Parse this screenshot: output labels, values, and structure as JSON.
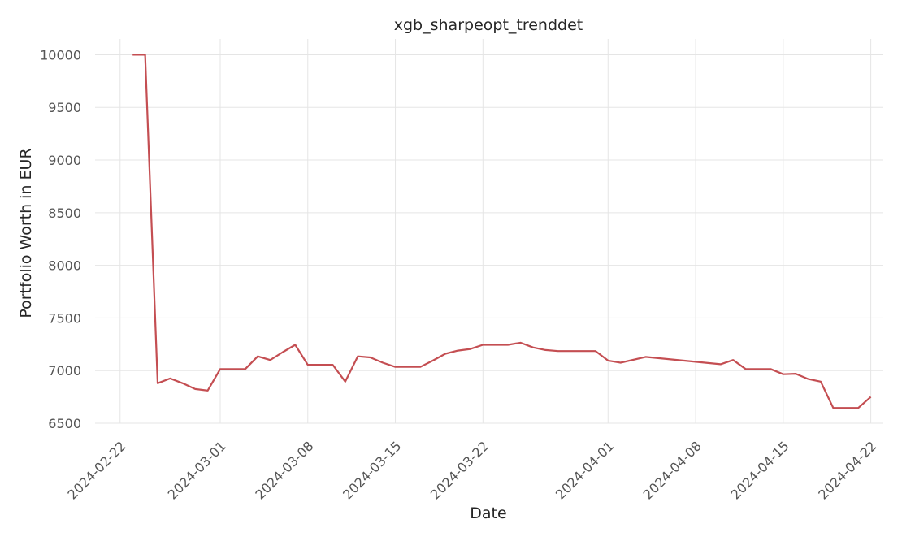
{
  "chart_data": {
    "type": "line",
    "title": "xgb_sharpeopt_trenddet",
    "xlabel": "Date",
    "ylabel": "Portfolio Worth in EUR",
    "ylim": [
      6500,
      10150
    ],
    "xlim": [
      "2024-02-20",
      "2024-04-23"
    ],
    "yticks": [
      6500,
      7000,
      7500,
      8000,
      8500,
      9000,
      9500,
      10000
    ],
    "xticks": [
      "2024-02-22",
      "2024-03-01",
      "2024-03-08",
      "2024-03-15",
      "2024-03-22",
      "2024-04-01",
      "2024-04-08",
      "2024-04-15",
      "2024-04-22"
    ],
    "grid": true,
    "line_color": "#c44e52",
    "series": [
      {
        "x": [
          "2024-02-23",
          "2024-02-24",
          "2024-02-25",
          "2024-02-26",
          "2024-02-27",
          "2024-02-28",
          "2024-02-29",
          "2024-03-01",
          "2024-03-02",
          "2024-03-03",
          "2024-03-04",
          "2024-03-05",
          "2024-03-06",
          "2024-03-07",
          "2024-03-08",
          "2024-03-09",
          "2024-03-10",
          "2024-03-11",
          "2024-03-12",
          "2024-03-13",
          "2024-03-14",
          "2024-03-15",
          "2024-03-16",
          "2024-03-17",
          "2024-03-18",
          "2024-03-19",
          "2024-03-20",
          "2024-03-21",
          "2024-03-22",
          "2024-03-23",
          "2024-03-24",
          "2024-03-25",
          "2024-03-26",
          "2024-03-27",
          "2024-03-28",
          "2024-03-29",
          "2024-03-30",
          "2024-03-31",
          "2024-04-01",
          "2024-04-02",
          "2024-04-04",
          "2024-04-10",
          "2024-04-11",
          "2024-04-12",
          "2024-04-13",
          "2024-04-14",
          "2024-04-15",
          "2024-04-16",
          "2024-04-17",
          "2024-04-18",
          "2024-04-19",
          "2024-04-20",
          "2024-04-21",
          "2024-04-22"
        ],
        "values": [
          10000,
          10000,
          6880,
          6925,
          6880,
          6825,
          6810,
          7015,
          7015,
          7015,
          7135,
          7100,
          7175,
          7245,
          7055,
          7055,
          7055,
          6895,
          7135,
          7125,
          7075,
          7035,
          7035,
          7035,
          7095,
          7160,
          7190,
          7205,
          7245,
          7245,
          7245,
          7265,
          7220,
          7195,
          7185,
          7185,
          7185,
          7185,
          7095,
          7075,
          7130,
          7060,
          7100,
          7015,
          7015,
          7015,
          6965,
          6970,
          6920,
          6895,
          6645,
          6645,
          6645,
          6750
        ]
      }
    ]
  }
}
